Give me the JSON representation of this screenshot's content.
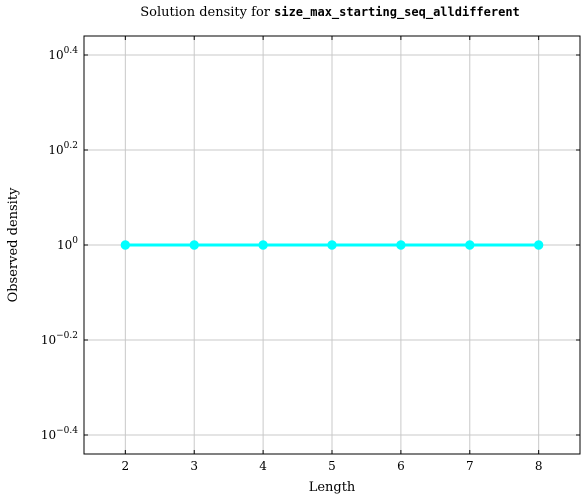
{
  "chart_data": {
    "type": "line",
    "title_prefix": "Solution density for ",
    "title_code": "size_max_starting_seq_alldifferent",
    "xlabel": "Length",
    "ylabel": "Observed density",
    "x": [
      2,
      3,
      4,
      5,
      6,
      7,
      8
    ],
    "series": [
      {
        "color": "#00ffff",
        "values": [
          1,
          1,
          1,
          1,
          1,
          1,
          1
        ]
      }
    ],
    "xlim": [
      1.4,
      8.6
    ],
    "ylim_log10": [
      -0.44,
      0.44
    ],
    "y_scale": "log",
    "grid": true,
    "x_ticks": [
      "2",
      "3",
      "4",
      "5",
      "6",
      "7",
      "8"
    ],
    "y_ticks": [
      {
        "base": "10",
        "exp": "0.4",
        "value_log10": 0.4
      },
      {
        "base": "10",
        "exp": "0.2",
        "value_log10": 0.2
      },
      {
        "base": "10",
        "exp": "0",
        "value_log10": 0
      },
      {
        "base": "10",
        "exp": "−0.2",
        "value_log10": -0.2
      },
      {
        "base": "10",
        "exp": "−0.4",
        "value_log10": -0.4
      }
    ]
  }
}
